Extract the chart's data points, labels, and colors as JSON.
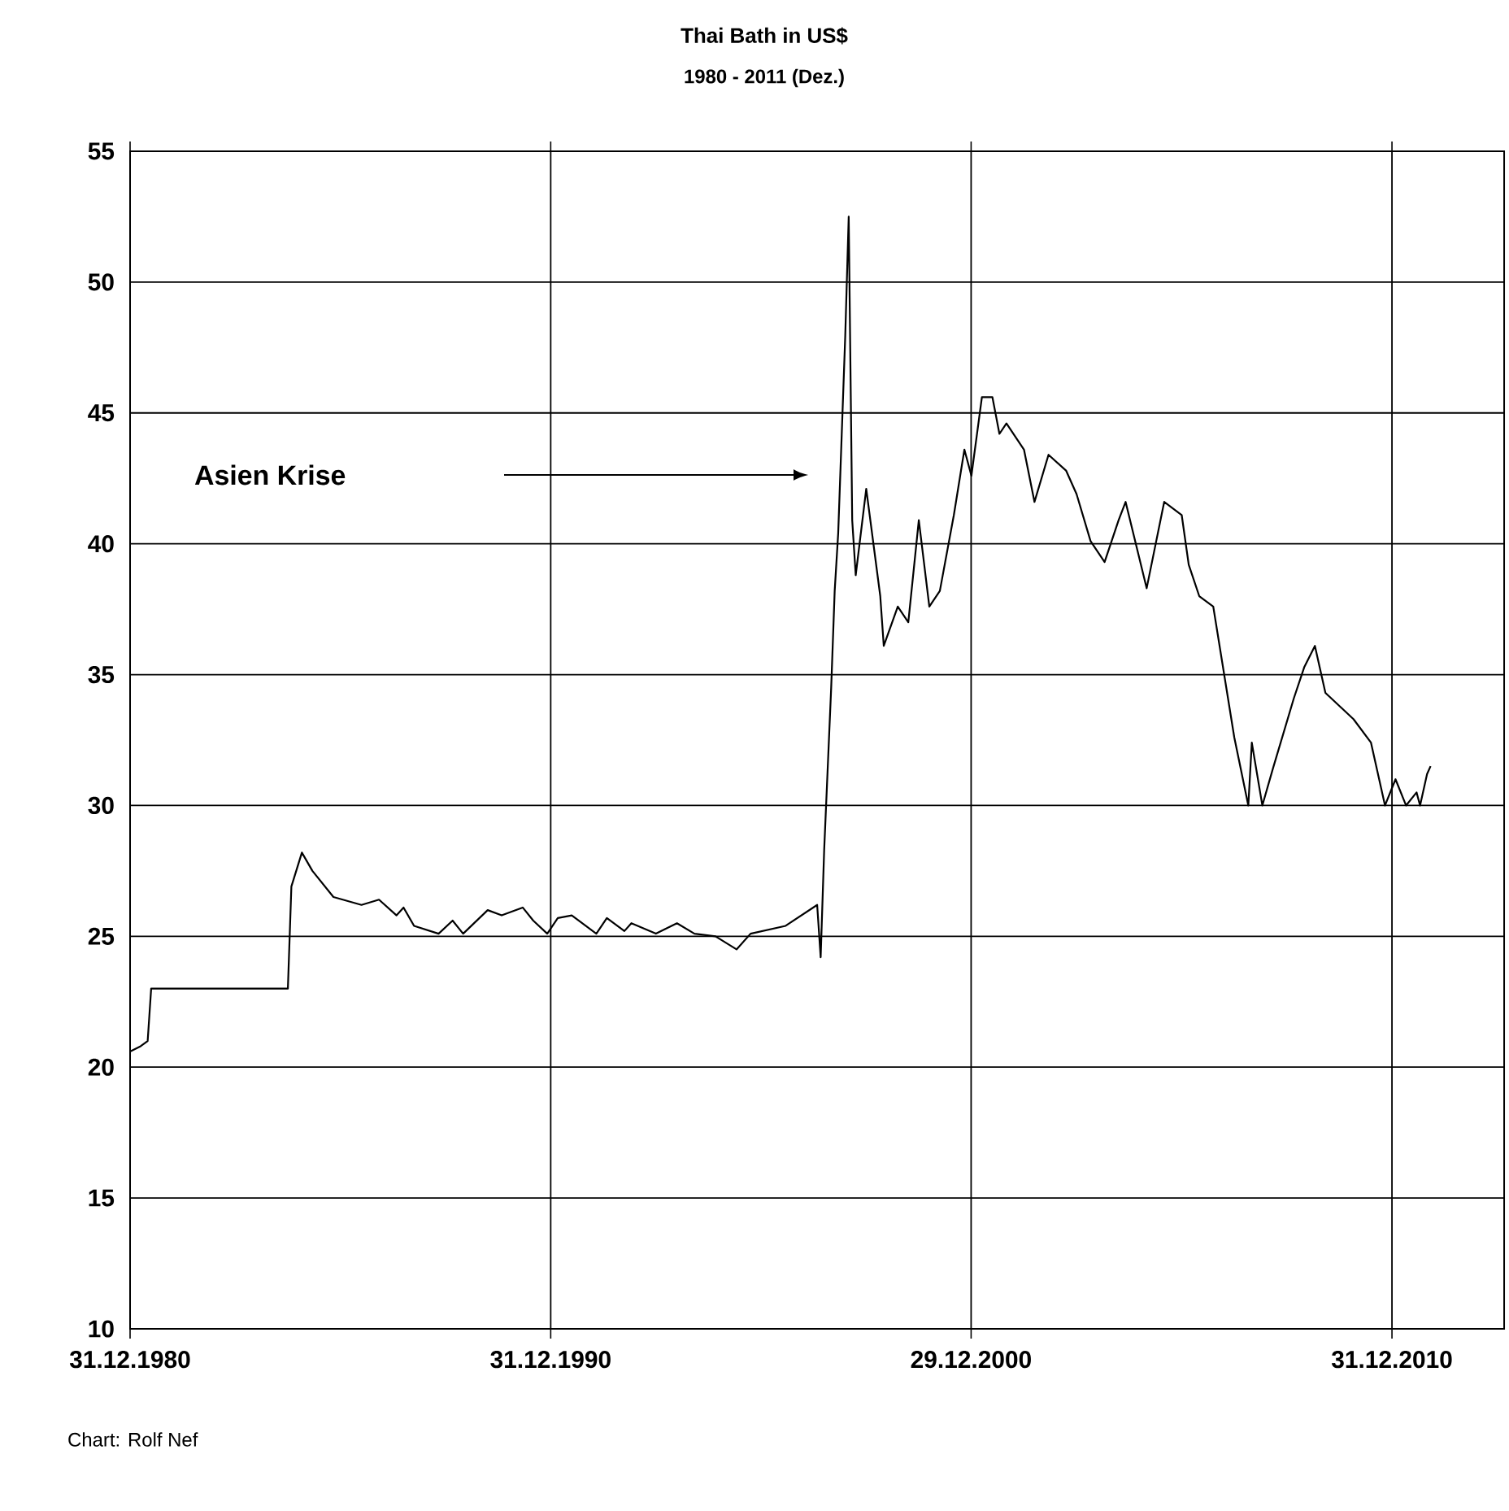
{
  "chart_data": {
    "type": "line",
    "title": "Thai Bath in US$",
    "subtitle": "1980 - 2011 (Dez.)",
    "x": [
      "1980-12-31",
      "1981-04",
      "1981-06",
      "1981-07",
      "1984-10",
      "1984-11",
      "1985-02",
      "1985-05",
      "1985-11",
      "1986-07",
      "1986-12",
      "1987-05",
      "1987-07",
      "1987-10",
      "1988-05",
      "1988-09",
      "1988-12",
      "1989-07",
      "1989-11",
      "1990-05",
      "1990-08",
      "1990-12",
      "1991-03",
      "1991-07",
      "1992-02",
      "1992-05",
      "1992-10",
      "1992-12",
      "1993-07",
      "1994-01",
      "1994-06",
      "1994-12",
      "1995-06",
      "1995-10",
      "1996-08",
      "1997-05",
      "1997-06",
      "1997-07",
      "1997-09",
      "1997-10",
      "1997-11",
      "1998-01",
      "1998-02",
      "1998-03",
      "1998-04",
      "1998-07",
      "1998-11",
      "1998-12",
      "1999-04",
      "1999-07",
      "1999-10",
      "2000-01",
      "2000-04",
      "2000-08",
      "2000-11",
      "2001-01",
      "2001-04",
      "2001-07",
      "2001-09",
      "2001-11",
      "2002-04",
      "2002-07",
      "2002-11",
      "2003-04",
      "2003-07",
      "2003-11",
      "2004-03",
      "2004-07",
      "2004-09",
      "2005-03",
      "2005-08",
      "2006-01",
      "2006-03",
      "2006-06",
      "2006-10",
      "2007-04",
      "2007-08",
      "2007-09",
      "2007-12",
      "2008-03",
      "2008-09",
      "2008-12",
      "2009-03",
      "2009-06",
      "2010-02",
      "2010-07",
      "2010-11",
      "2011-02",
      "2011-05",
      "2011-08",
      "2011-09",
      "2011-11",
      "2011-12"
    ],
    "values": [
      20.6,
      20.8,
      21.0,
      23.0,
      23.0,
      26.9,
      28.2,
      27.5,
      26.5,
      26.2,
      26.4,
      25.8,
      26.1,
      25.4,
      25.1,
      25.6,
      25.1,
      26.0,
      25.8,
      26.1,
      25.6,
      25.1,
      25.7,
      25.8,
      25.1,
      25.7,
      25.2,
      25.5,
      25.1,
      25.5,
      25.1,
      25.0,
      24.5,
      25.1,
      25.4,
      26.2,
      24.2,
      28.3,
      34.5,
      38.2,
      40.4,
      47.9,
      52.5,
      40.9,
      38.8,
      42.1,
      38.0,
      36.1,
      37.6,
      37.0,
      40.9,
      37.6,
      38.2,
      41.1,
      43.6,
      42.6,
      45.6,
      45.6,
      44.2,
      44.6,
      43.6,
      41.6,
      43.4,
      42.8,
      41.9,
      40.1,
      39.3,
      40.9,
      41.6,
      38.3,
      41.6,
      41.1,
      39.2,
      38.0,
      37.6,
      32.6,
      30.0,
      32.4,
      30.0,
      31.4,
      34.1,
      35.3,
      36.1,
      34.3,
      33.3,
      32.4,
      30.0,
      31.0,
      30.0,
      30.5,
      30.0,
      31.2,
      31.5
    ],
    "color": "#000000",
    "xlim": [
      "1980-12-31",
      "2013-08-31"
    ],
    "xticks": [
      {
        "value": "1980-12-31",
        "label": "31.12.1980"
      },
      {
        "value": "1990-12-31",
        "label": "31.12.1990"
      },
      {
        "value": "2000-12-29",
        "label": "29.12.2000"
      },
      {
        "value": "2010-12-31",
        "label": "31.12.2010"
      }
    ],
    "ylim": [
      10,
      55
    ],
    "yticks": [
      10,
      15,
      20,
      25,
      30,
      35,
      40,
      45,
      50,
      55
    ],
    "grid": true,
    "annotations": [
      "Asien Krise",
      "Chart: Rolf Nef"
    ]
  }
}
